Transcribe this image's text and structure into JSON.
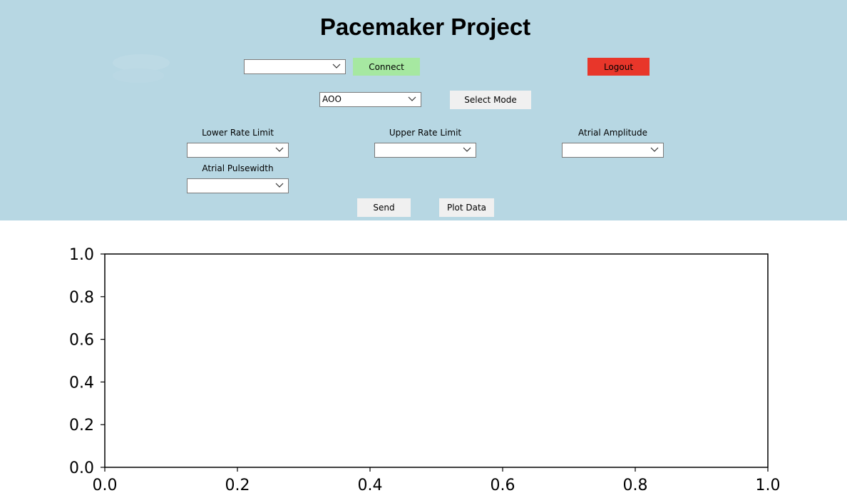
{
  "app": {
    "title": "Pacemaker Project"
  },
  "connection": {
    "port_value": "",
    "connect_label": "Connect",
    "logout_label": "Logout"
  },
  "mode": {
    "selected": "AOO",
    "select_label": "Select Mode"
  },
  "parameters": [
    {
      "label": "Lower Rate Limit",
      "value": ""
    },
    {
      "label": "Upper Rate Limit",
      "value": ""
    },
    {
      "label": "Atrial Amplitude",
      "value": ""
    },
    {
      "label": "Atrial Pulsewidth",
      "value": ""
    }
  ],
  "actions": {
    "send_label": "Send",
    "plot_label": "Plot Data"
  },
  "colors": {
    "panel": "#b7d7e3",
    "connect": "#a6e8a1",
    "logout": "#e8362a"
  },
  "chart_data": {
    "type": "line",
    "series": [],
    "xlim": [
      0.0,
      1.0
    ],
    "ylim": [
      0.0,
      1.0
    ],
    "xticks": [
      "0.0",
      "0.2",
      "0.4",
      "0.6",
      "0.8",
      "1.0"
    ],
    "yticks": [
      "0.0",
      "0.2",
      "0.4",
      "0.6",
      "0.8",
      "1.0"
    ],
    "grid": false
  }
}
